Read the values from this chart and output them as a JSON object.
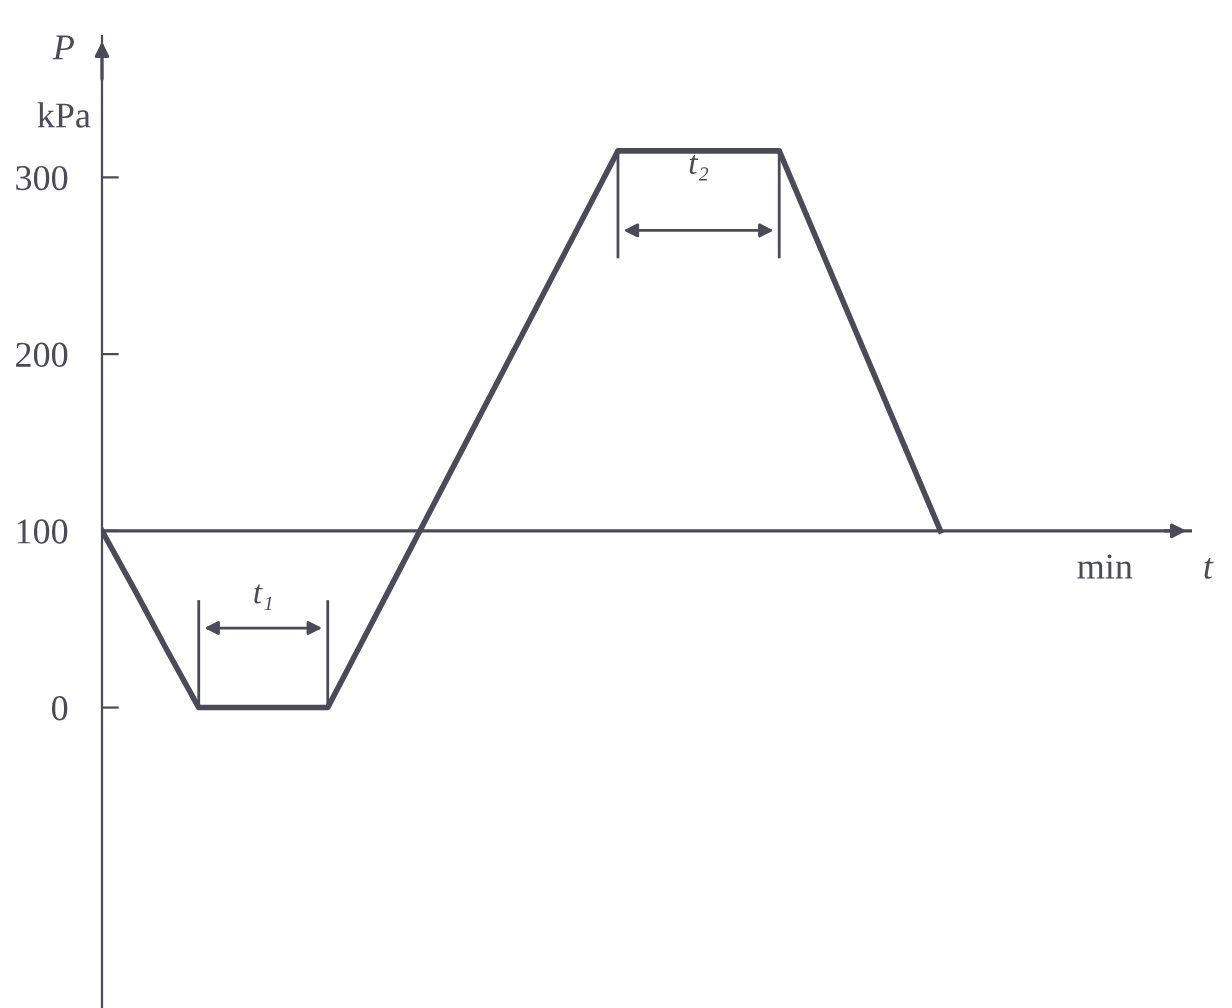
{
  "chart_data": {
    "type": "line",
    "ylabel": "P",
    "xlabel": "t",
    "categories": [
      null,
      null,
      null,
      null,
      null,
      null,
      null,
      null,
      null,
      null,
      null,
      null,
      null,
      null,
      null,
      null,
      null,
      null,
      null,
      null,
      null,
      null,
      null,
      null,
      null,
      null,
      null,
      null,
      null,
      null,
      null,
      null,
      null,
      null
    ],
    "series": [
      {
        "color": "#4a4a58",
        "values": [
          100,
          67,
          33,
          0,
          0,
          0,
          0,
          0,
          35,
          70,
          105,
          140,
          175,
          210,
          245,
          280,
          315,
          315,
          315,
          315,
          315,
          315,
          272,
          229,
          186,
          143,
          100,
          null,
          null,
          null,
          null,
          null,
          null,
          null
        ]
      }
    ],
    "ylim": [
      -170,
      380
    ],
    "yticks": [
      0,
      100,
      200,
      300
    ],
    "ref_lines": [
      {
        "axis": "y",
        "value": 100
      }
    ],
    "grid": false,
    "legend": false,
    "marker": "none",
    "line_style": "solid",
    "tick_labels": "y",
    "annotations": [
      "kPa",
      "min",
      {
        "text": "t₁",
        "y": 0
      },
      {
        "text": "t₂",
        "y": 315
      }
    ]
  }
}
